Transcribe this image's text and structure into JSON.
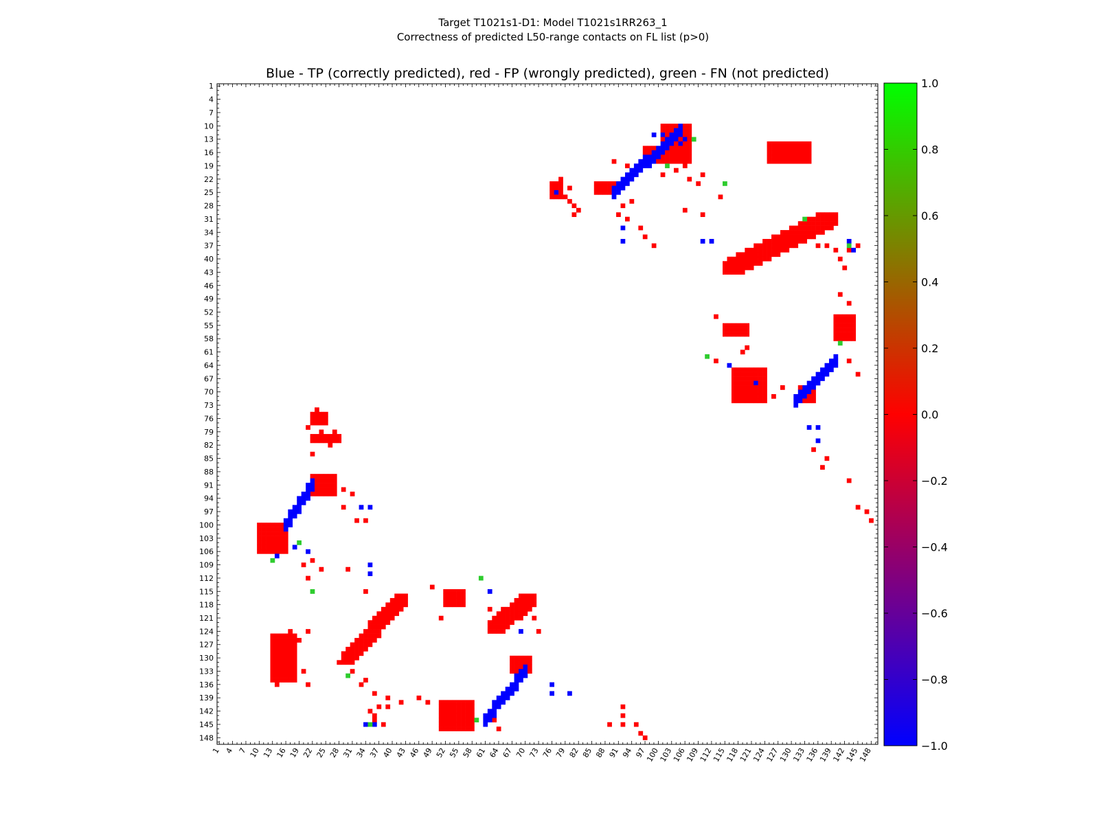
{
  "chart_data": {
    "type": "heatmap",
    "title_lines": [
      "Target T1021s1-D1: Model T1021s1RR263_1",
      "Correctness of predicted L50-range contacts on FL list (p>0)"
    ],
    "subtitle": "Blue - TP (correctly predicted), red - FP (wrongly predicted), green - FN (not predicted)",
    "n_residues": 149,
    "x_ticks": [
      1,
      4,
      7,
      10,
      13,
      16,
      19,
      22,
      25,
      28,
      31,
      34,
      37,
      40,
      43,
      46,
      49,
      52,
      55,
      58,
      61,
      64,
      67,
      70,
      73,
      76,
      79,
      82,
      85,
      88,
      91,
      94,
      97,
      100,
      103,
      106,
      109,
      112,
      115,
      118,
      121,
      124,
      127,
      130,
      133,
      136,
      139,
      142,
      145,
      148
    ],
    "y_ticks": [
      1,
      4,
      7,
      10,
      13,
      16,
      19,
      22,
      25,
      28,
      31,
      34,
      37,
      40,
      43,
      46,
      49,
      52,
      55,
      58,
      61,
      64,
      67,
      70,
      73,
      76,
      79,
      82,
      85,
      88,
      91,
      94,
      97,
      100,
      103,
      106,
      109,
      112,
      115,
      118,
      121,
      124,
      127,
      130,
      133,
      136,
      139,
      142,
      145,
      148
    ],
    "colorbar": {
      "min": -1.0,
      "max": 1.0,
      "ticks": [
        "1.0",
        "0.8",
        "0.6",
        "0.4",
        "0.2",
        "0.0",
        "−0.2",
        "−0.4",
        "−0.6",
        "−0.8",
        "−1.0"
      ],
      "colors": {
        "top": "#00ff00",
        "mid": "#ff0000",
        "bottom": "#0000ff"
      }
    },
    "colors": {
      "tp": "#0000ff",
      "fp": "#ff0000",
      "fn": "#2ecc2e"
    },
    "tp_diagonals": [
      {
        "start": [
          90,
          24
        ],
        "end": [
          105,
          10
        ],
        "width": 3
      },
      {
        "start": [
          140,
          62
        ],
        "end": [
          131,
          71
        ],
        "width": 3
      },
      {
        "start": [
          22,
          90
        ],
        "end": [
          16,
          99
        ],
        "width": 3
      },
      {
        "start": [
          70,
          132
        ],
        "end": [
          61,
          143
        ],
        "width": 3
      }
    ],
    "fp_blocks": [
      {
        "x": [
          101,
          107
        ],
        "y": [
          10,
          18
        ]
      },
      {
        "x": [
          97,
          102
        ],
        "y": [
          15,
          18
        ]
      },
      {
        "x": [
          125,
          134
        ],
        "y": [
          14,
          18
        ]
      },
      {
        "x": [
          115,
          140
        ],
        "y": [
          30,
          43
        ],
        "band": true
      },
      {
        "x": [
          140,
          144
        ],
        "y": [
          53,
          58
        ]
      },
      {
        "x": [
          115,
          120
        ],
        "y": [
          55,
          57
        ]
      },
      {
        "x": [
          117,
          124
        ],
        "y": [
          65,
          72
        ]
      },
      {
        "x": [
          132,
          135
        ],
        "y": [
          69,
          72
        ]
      },
      {
        "x": [
          10,
          16
        ],
        "y": [
          100,
          106
        ]
      },
      {
        "x": [
          13,
          18
        ],
        "y": [
          125,
          135
        ]
      },
      {
        "x": [
          29,
          43
        ],
        "y": [
          116,
          131
        ],
        "band": true
      },
      {
        "x": [
          51,
          58
        ],
        "y": [
          140,
          146
        ]
      },
      {
        "x": [
          52,
          56
        ],
        "y": [
          115,
          118
        ]
      },
      {
        "x": [
          62,
          72
        ],
        "y": [
          116,
          124
        ],
        "band": true
      },
      {
        "x": [
          67,
          71
        ],
        "y": [
          130,
          133
        ]
      },
      {
        "x": [
          22,
          25
        ],
        "y": [
          75,
          77
        ]
      },
      {
        "x": [
          22,
          28
        ],
        "y": [
          80,
          81
        ]
      },
      {
        "x": [
          22,
          27
        ],
        "y": [
          89,
          93
        ]
      },
      {
        "x": [
          76,
          78
        ],
        "y": [
          23,
          26
        ]
      },
      {
        "x": [
          86,
          90
        ],
        "y": [
          23,
          25
        ]
      }
    ],
    "fp_points": [
      [
        90,
        18
      ],
      [
        93,
        19
      ],
      [
        101,
        21
      ],
      [
        104,
        20
      ],
      [
        107,
        22
      ],
      [
        109,
        23
      ],
      [
        106,
        19
      ],
      [
        110,
        21
      ],
      [
        78,
        22
      ],
      [
        80,
        24
      ],
      [
        79,
        26
      ],
      [
        80,
        27
      ],
      [
        81,
        28
      ],
      [
        82,
        29
      ],
      [
        81,
        30
      ],
      [
        92,
        28
      ],
      [
        94,
        27
      ],
      [
        91,
        30
      ],
      [
        93,
        31
      ],
      [
        96,
        33
      ],
      [
        97,
        35
      ],
      [
        99,
        37
      ],
      [
        106,
        29
      ],
      [
        110,
        30
      ],
      [
        114,
        26
      ],
      [
        136,
        37
      ],
      [
        138,
        37
      ],
      [
        140,
        38
      ],
      [
        143,
        38
      ],
      [
        145,
        37
      ],
      [
        141,
        40
      ],
      [
        142,
        42
      ],
      [
        141,
        48
      ],
      [
        143,
        50
      ],
      [
        113,
        53
      ],
      [
        116,
        55
      ],
      [
        119,
        61
      ],
      [
        120,
        60
      ],
      [
        113,
        63
      ],
      [
        124,
        70
      ],
      [
        126,
        71
      ],
      [
        128,
        69
      ],
      [
        145,
        66
      ],
      [
        143,
        63
      ],
      [
        143,
        90
      ],
      [
        145,
        96
      ],
      [
        147,
        97
      ],
      [
        148,
        99
      ],
      [
        137,
        87
      ],
      [
        135,
        83
      ],
      [
        138,
        85
      ],
      [
        23,
        74
      ],
      [
        21,
        78
      ],
      [
        24,
        79
      ],
      [
        27,
        79
      ],
      [
        26,
        82
      ],
      [
        22,
        84
      ],
      [
        29,
        92
      ],
      [
        31,
        93
      ],
      [
        29,
        96
      ],
      [
        32,
        99
      ],
      [
        34,
        99
      ],
      [
        22,
        108
      ],
      [
        24,
        110
      ],
      [
        20,
        109
      ],
      [
        21,
        112
      ],
      [
        30,
        110
      ],
      [
        34,
        115
      ],
      [
        28,
        131
      ],
      [
        31,
        133
      ],
      [
        33,
        136
      ],
      [
        36,
        138
      ],
      [
        37,
        141
      ],
      [
        39,
        141
      ],
      [
        39,
        139
      ],
      [
        42,
        140
      ],
      [
        46,
        139
      ],
      [
        48,
        140
      ],
      [
        35,
        142
      ],
      [
        36,
        143
      ],
      [
        30,
        134
      ],
      [
        49,
        114
      ],
      [
        51,
        121
      ],
      [
        62,
        119
      ],
      [
        64,
        121
      ],
      [
        63,
        144
      ],
      [
        64,
        146
      ],
      [
        73,
        124
      ],
      [
        72,
        121
      ],
      [
        17,
        124
      ],
      [
        19,
        126
      ],
      [
        21,
        124
      ],
      [
        20,
        133
      ],
      [
        21,
        136
      ],
      [
        18,
        134
      ],
      [
        14,
        136
      ],
      [
        92,
        141
      ],
      [
        92,
        143
      ],
      [
        92,
        145
      ],
      [
        95,
        145
      ],
      [
        96,
        147
      ],
      [
        97,
        148
      ],
      [
        89,
        145
      ],
      [
        80,
        138
      ],
      [
        34,
        135
      ],
      [
        36,
        144
      ],
      [
        38,
        145
      ]
    ],
    "tp_points": [
      [
        77,
        25
      ],
      [
        92,
        33
      ],
      [
        92,
        36
      ],
      [
        99,
        12
      ],
      [
        101,
        12
      ],
      [
        105,
        14
      ],
      [
        106,
        13
      ],
      [
        110,
        36
      ],
      [
        112,
        36
      ],
      [
        143,
        36
      ],
      [
        144,
        38
      ],
      [
        116,
        64
      ],
      [
        122,
        68
      ],
      [
        134,
        78
      ],
      [
        136,
        78
      ],
      [
        136,
        81
      ],
      [
        21,
        106
      ],
      [
        14,
        107
      ],
      [
        18,
        105
      ],
      [
        33,
        96
      ],
      [
        35,
        96
      ],
      [
        35,
        109
      ],
      [
        35,
        111
      ],
      [
        69,
        124
      ],
      [
        76,
        136
      ],
      [
        76,
        138
      ],
      [
        80,
        138
      ],
      [
        34,
        145
      ],
      [
        36,
        145
      ],
      [
        62,
        115
      ]
    ],
    "fn_points": [
      [
        108,
        13
      ],
      [
        102,
        19
      ],
      [
        115,
        23
      ],
      [
        133,
        31
      ],
      [
        143,
        37
      ],
      [
        111,
        62
      ],
      [
        141,
        59
      ],
      [
        19,
        104
      ],
      [
        13,
        108
      ],
      [
        22,
        115
      ],
      [
        30,
        134
      ],
      [
        59,
        144
      ],
      [
        35,
        145
      ],
      [
        60,
        112
      ]
    ]
  }
}
